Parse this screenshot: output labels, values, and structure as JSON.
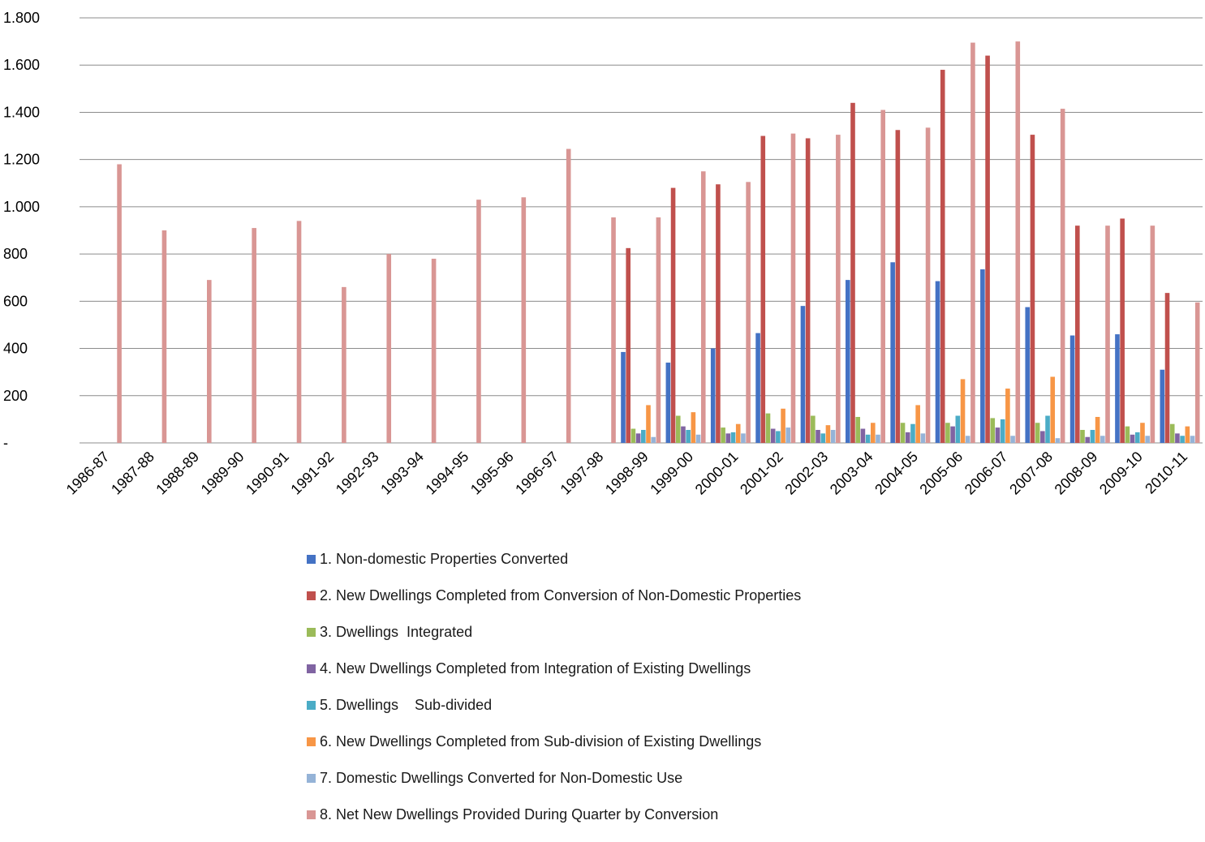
{
  "chart_data": {
    "type": "bar",
    "title": "",
    "xlabel": "",
    "ylabel": "",
    "ylim": [
      0,
      1800
    ],
    "grid": true,
    "legend_position": "bottom",
    "y_tick_labels": [
      "-",
      "200",
      "400",
      "600",
      "800",
      "1.000",
      "1.200",
      "1.400",
      "1.600",
      "1.800"
    ],
    "categories": [
      "1986-87",
      "1987-88",
      "1988-89",
      "1989-90",
      "1990-91",
      "1991-92",
      "1992-93",
      "1993-94",
      "1994-95",
      "1995-96",
      "1996-97",
      "1997-98",
      "1998-99",
      "1999-00",
      "2000-01",
      "2001-02",
      "2002-03",
      "2003-04",
      "2004-05",
      "2005-06",
      "2006-07",
      "2007-08",
      "2008-09",
      "2009-10",
      "2010-11"
    ],
    "series": [
      {
        "name": "1. Non-domestic Properties Converted",
        "color": "#4472c4",
        "values": [
          null,
          null,
          null,
          null,
          null,
          null,
          null,
          null,
          null,
          null,
          null,
          null,
          385,
          340,
          400,
          465,
          580,
          690,
          765,
          685,
          735,
          575,
          455,
          460,
          310
        ]
      },
      {
        "name": "2. New Dwellings Completed from Conversion of Non-Domestic Properties",
        "color": "#c0504d",
        "values": [
          null,
          null,
          null,
          null,
          null,
          null,
          null,
          null,
          null,
          null,
          null,
          null,
          825,
          1080,
          1095,
          1300,
          1290,
          1440,
          1325,
          1580,
          1640,
          1305,
          920,
          950,
          635
        ]
      },
      {
        "name": "3. Dwellings  Integrated",
        "color": "#9bbb59",
        "values": [
          null,
          null,
          null,
          null,
          null,
          null,
          null,
          null,
          null,
          null,
          null,
          null,
          60,
          115,
          65,
          125,
          115,
          110,
          85,
          85,
          105,
          85,
          55,
          70,
          80
        ]
      },
      {
        "name": "4. New Dwellings Completed from Integration of Existing Dwellings",
        "color": "#8064a2",
        "values": [
          null,
          null,
          null,
          null,
          null,
          null,
          null,
          null,
          null,
          null,
          null,
          null,
          40,
          70,
          40,
          60,
          55,
          60,
          45,
          70,
          65,
          50,
          25,
          35,
          40
        ]
      },
      {
        "name": "5. Dwellings    Sub-divided",
        "color": "#4bacc6",
        "values": [
          null,
          null,
          null,
          null,
          null,
          null,
          null,
          null,
          null,
          null,
          null,
          null,
          55,
          55,
          45,
          50,
          40,
          35,
          80,
          115,
          100,
          115,
          55,
          45,
          30
        ]
      },
      {
        "name": "6. New Dwellings Completed from Sub-division of Existing Dwellings",
        "color": "#f79646",
        "values": [
          null,
          null,
          null,
          null,
          null,
          null,
          null,
          null,
          null,
          null,
          null,
          null,
          160,
          130,
          80,
          145,
          75,
          85,
          160,
          270,
          230,
          280,
          110,
          85,
          70
        ]
      },
      {
        "name": "7. Domestic Dwellings Converted for Non-Domestic Use",
        "color": "#95b3d7",
        "values": [
          null,
          null,
          null,
          null,
          null,
          null,
          null,
          null,
          null,
          null,
          null,
          null,
          25,
          35,
          40,
          65,
          55,
          35,
          40,
          30,
          30,
          20,
          30,
          30,
          30
        ]
      },
      {
        "name": "8. Net New Dwellings Provided During Quarter by Conversion",
        "color": "#d99694",
        "values": [
          1180,
          900,
          690,
          910,
          940,
          660,
          800,
          780,
          1030,
          1040,
          1245,
          955,
          955,
          1150,
          1105,
          1310,
          1305,
          1410,
          1335,
          1695,
          1700,
          1415,
          920,
          920,
          595
        ]
      }
    ]
  }
}
